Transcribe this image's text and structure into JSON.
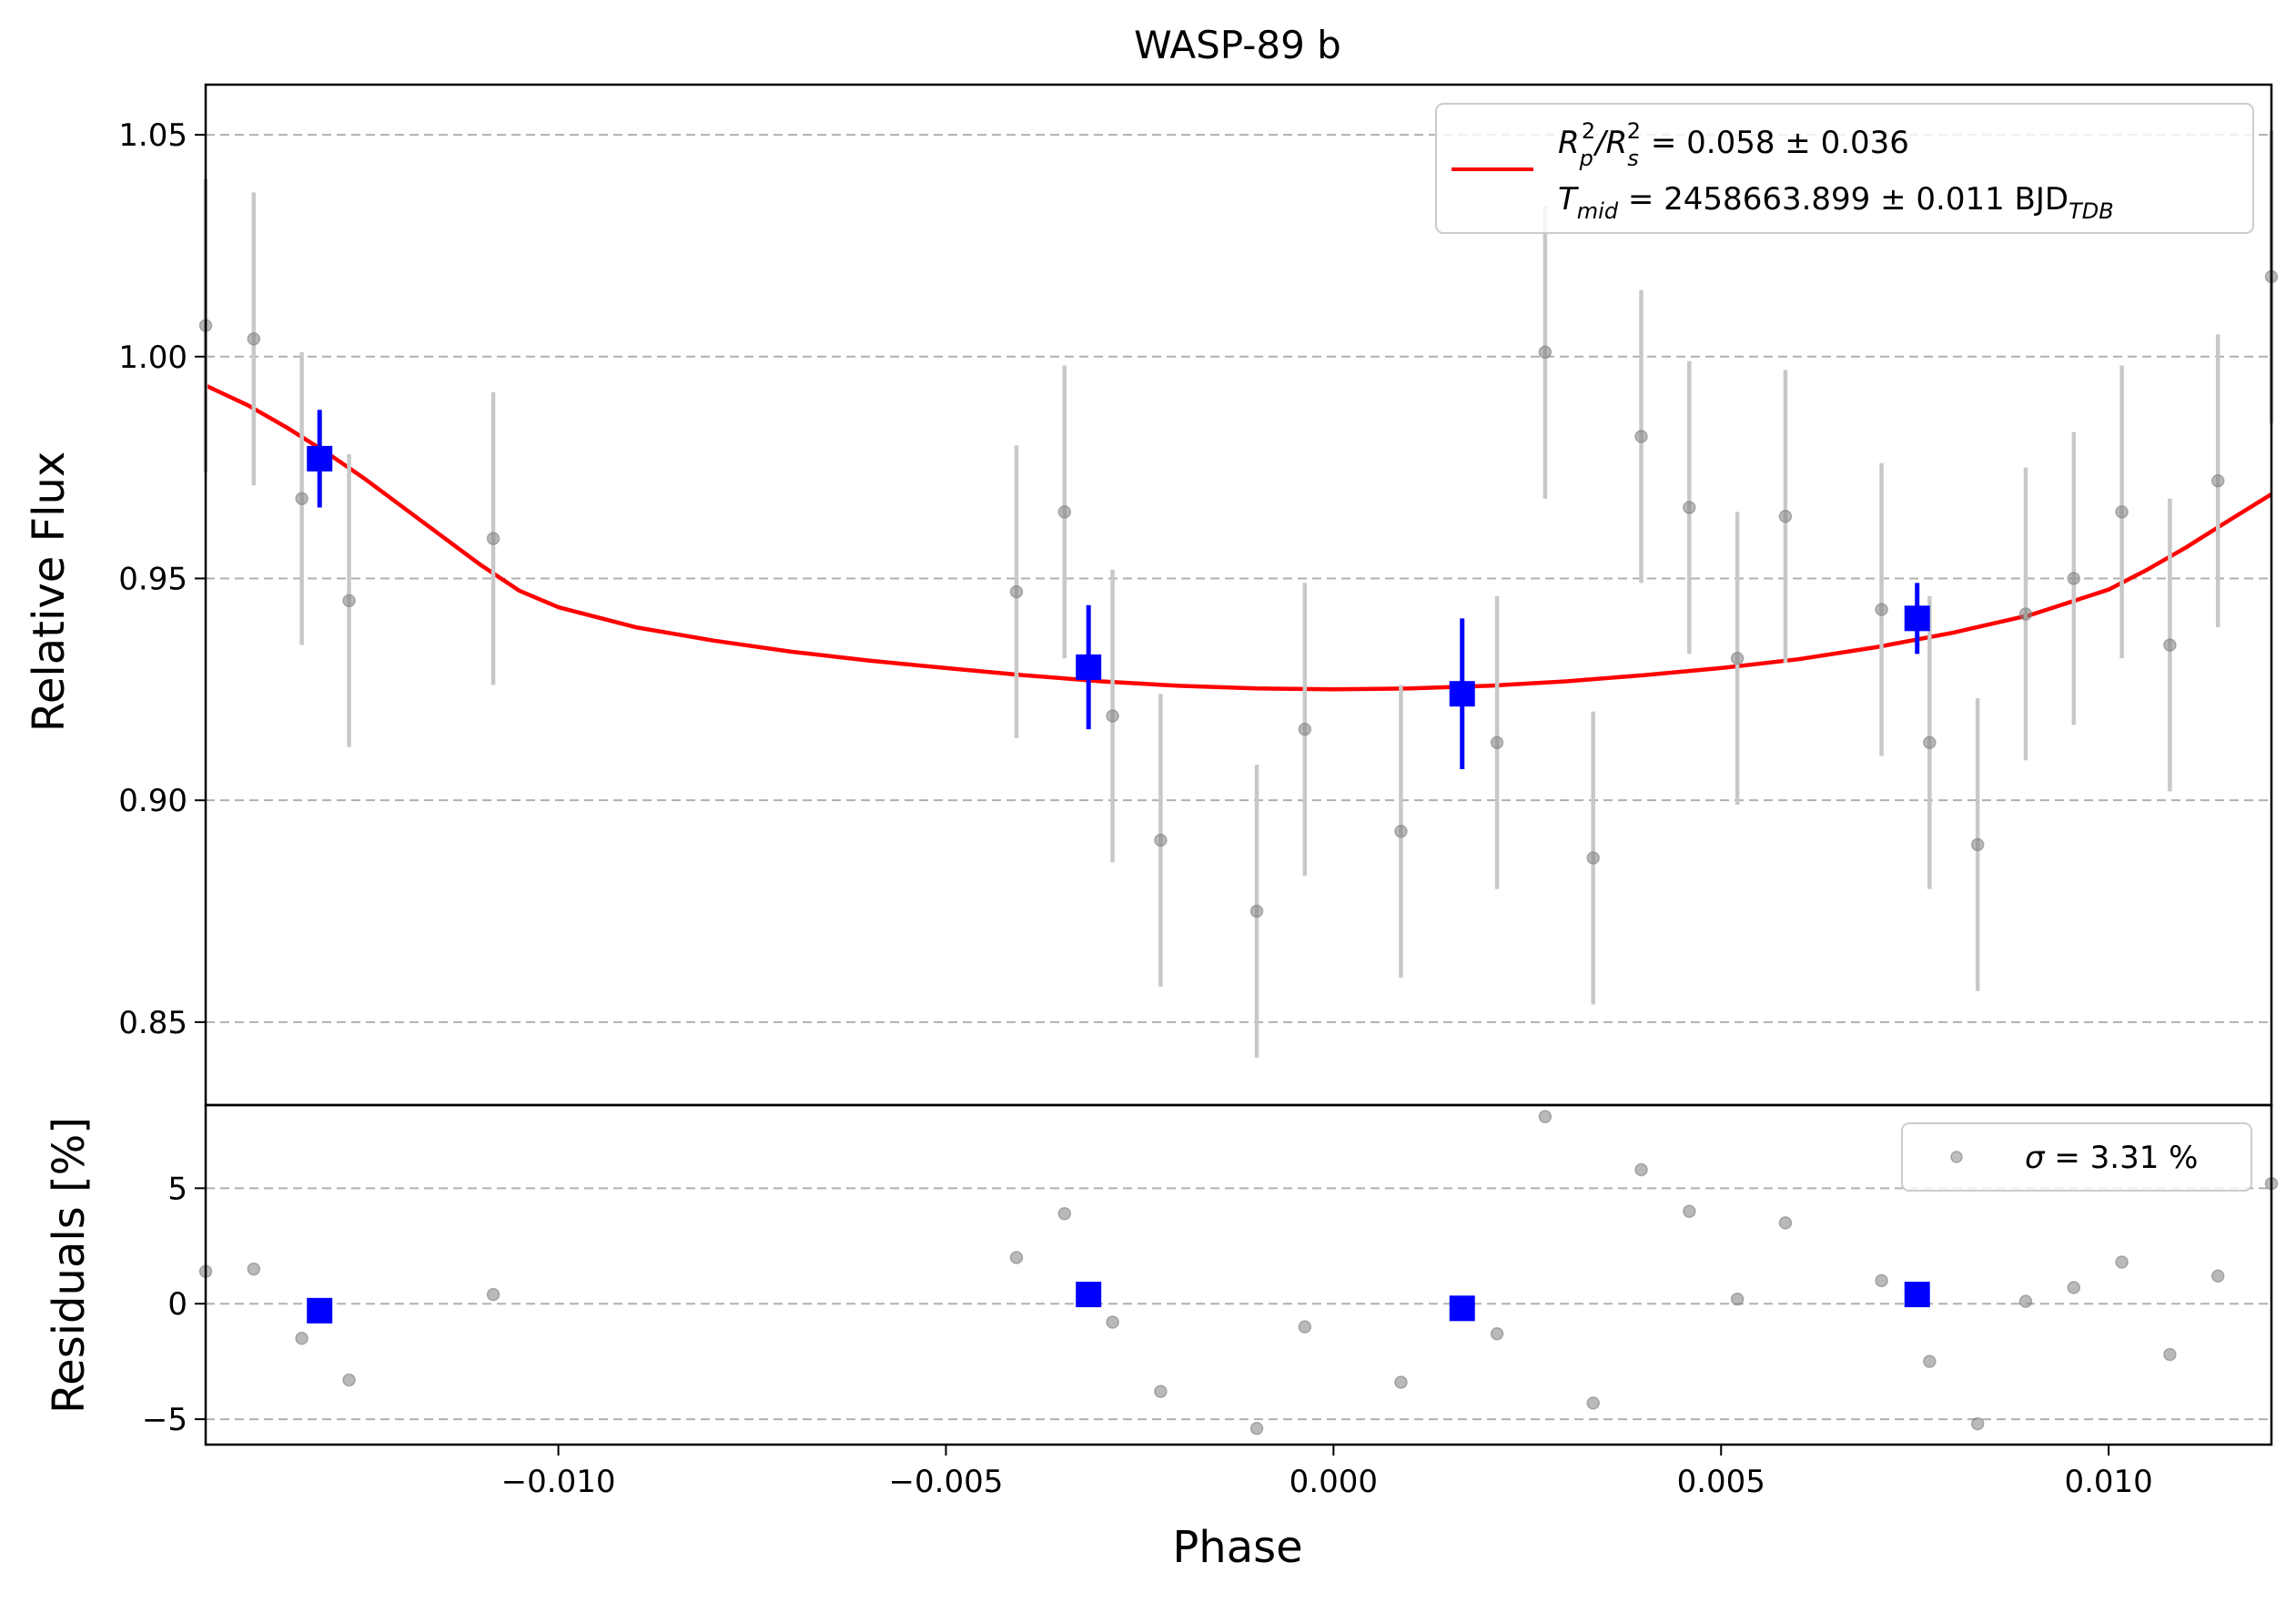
{
  "chart_data": [
    {
      "type": "scatter",
      "title": "WASP-89 b",
      "xlabel": "Phase",
      "ylabel": "Relative Flux",
      "xlim": [
        -0.01455,
        0.0121
      ],
      "ylim": [
        0.8313,
        1.0613
      ],
      "x_ticks": [
        -0.01,
        -0.005,
        0.0,
        0.005,
        0.01
      ],
      "x_tick_labels": [
        "−0.010",
        "−0.005",
        "0.000",
        "0.005",
        "0.010"
      ],
      "y_ticks": [
        0.85,
        0.9,
        0.95,
        1.0,
        1.05
      ],
      "y_tick_labels": [
        "0.85",
        "0.90",
        "0.95",
        "1.00",
        "1.05"
      ],
      "grid": "horizontal dashed",
      "legend": {
        "placement": "upper right",
        "line1": {
          "lhs_main": "R",
          "lhs_sub1": "p",
          "lhs_sup1": "2",
          "lhs_sep": "/R",
          "lhs_sub2": "s",
          "lhs_sup2": "2",
          "rhs": " = 0.058 ± 0.036"
        },
        "line2": {
          "lhs_main": "T",
          "lhs_sub": "mid",
          "rhs": " = 2458663.899 ± 0.011 BJD",
          "rhs_sub": "TDB"
        }
      },
      "colors": {
        "data": "#808080",
        "errorbar": "#c8c8c8",
        "binned": "#0000ff",
        "model": "#ff0000",
        "grid": "#b0b0b0"
      },
      "series": [
        {
          "kind": "data",
          "points": [
            {
              "x": -0.01455,
              "y": 1.007,
              "err": 0.033
            },
            {
              "x": -0.01393,
              "y": 1.004,
              "err": 0.033
            },
            {
              "x": -0.01331,
              "y": 0.968,
              "err": 0.033
            },
            {
              "x": -0.0127,
              "y": 0.945,
              "err": 0.033
            },
            {
              "x": -0.01084,
              "y": 0.959,
              "err": 0.033
            },
            {
              "x": -0.00409,
              "y": 0.947,
              "err": 0.033
            },
            {
              "x": -0.00347,
              "y": 0.965,
              "err": 0.033
            },
            {
              "x": -0.00285,
              "y": 0.919,
              "err": 0.033
            },
            {
              "x": -0.00223,
              "y": 0.891,
              "err": 0.033
            },
            {
              "x": -0.00099,
              "y": 0.875,
              "err": 0.033
            },
            {
              "x": -0.00037,
              "y": 0.916,
              "err": 0.033
            },
            {
              "x": 0.00087,
              "y": 0.893,
              "err": 0.033
            },
            {
              "x": 0.00211,
              "y": 0.913,
              "err": 0.033
            },
            {
              "x": 0.00273,
              "y": 1.001,
              "err": 0.033
            },
            {
              "x": 0.00335,
              "y": 0.887,
              "err": 0.033
            },
            {
              "x": 0.00397,
              "y": 0.982,
              "err": 0.033
            },
            {
              "x": 0.00459,
              "y": 0.966,
              "err": 0.033
            },
            {
              "x": 0.00521,
              "y": 0.932,
              "err": 0.033
            },
            {
              "x": 0.00583,
              "y": 0.964,
              "err": 0.033
            },
            {
              "x": 0.00707,
              "y": 0.943,
              "err": 0.033
            },
            {
              "x": 0.00769,
              "y": 0.913,
              "err": 0.033
            },
            {
              "x": 0.00831,
              "y": 0.89,
              "err": 0.033
            },
            {
              "x": 0.00893,
              "y": 0.942,
              "err": 0.033
            },
            {
              "x": 0.00955,
              "y": 0.95,
              "err": 0.033
            },
            {
              "x": 0.01017,
              "y": 0.965,
              "err": 0.033
            },
            {
              "x": 0.01079,
              "y": 0.935,
              "err": 0.033
            },
            {
              "x": 0.01141,
              "y": 0.972,
              "err": 0.033
            },
            {
              "x": 0.0121,
              "y": 1.018,
              "err": 0.033
            }
          ]
        },
        {
          "kind": "binned",
          "points": [
            {
              "x": -0.01308,
              "y": 0.977,
              "err": 0.011
            },
            {
              "x": -0.00316,
              "y": 0.93,
              "err": 0.014
            },
            {
              "x": 0.00166,
              "y": 0.924,
              "err": 0.017
            },
            {
              "x": 0.00753,
              "y": 0.941,
              "err": 0.008
            }
          ]
        },
        {
          "kind": "model",
          "x": [
            -0.01455,
            -0.014,
            -0.0135,
            -0.013,
            -0.0125,
            -0.012,
            -0.0115,
            -0.011,
            -0.0105,
            -0.01,
            -0.009,
            -0.008,
            -0.007,
            -0.006,
            -0.005,
            -0.004,
            -0.003,
            -0.002,
            -0.001,
            0.0,
            0.001,
            0.002,
            0.003,
            0.004,
            0.005,
            0.006,
            0.007,
            0.008,
            0.009,
            0.01,
            0.0105,
            0.011,
            0.0115,
            0.0121
          ],
          "y": [
            0.9935,
            0.989,
            0.984,
            0.9785,
            0.9725,
            0.966,
            0.9595,
            0.953,
            0.9472,
            0.9435,
            0.939,
            0.936,
            0.9335,
            0.9315,
            0.9298,
            0.9282,
            0.9268,
            0.9258,
            0.9252,
            0.925,
            0.9252,
            0.9258,
            0.9268,
            0.9282,
            0.9298,
            0.9318,
            0.9345,
            0.9378,
            0.9418,
            0.9475,
            0.952,
            0.957,
            0.9625,
            0.969
          ]
        }
      ]
    },
    {
      "type": "scatter",
      "xlabel": "Phase",
      "ylabel": "Residuals [%]",
      "xlim": [
        -0.01455,
        0.0121
      ],
      "ylim": [
        -6.1,
        8.6
      ],
      "y_ticks": [
        -5,
        0,
        5
      ],
      "y_tick_labels": [
        "−5",
        "0",
        "5"
      ],
      "grid": "horizontal dashed",
      "legend": {
        "placement": "upper right",
        "sym": "σ",
        "rhs": " = 3.31 %"
      },
      "series": [
        {
          "kind": "data",
          "points": [
            {
              "x": -0.01455,
              "y": 1.4
            },
            {
              "x": -0.01393,
              "y": 1.5
            },
            {
              "x": -0.01331,
              "y": -1.5
            },
            {
              "x": -0.0127,
              "y": -3.3
            },
            {
              "x": -0.01084,
              "y": 0.4
            },
            {
              "x": -0.00409,
              "y": 2.0
            },
            {
              "x": -0.00347,
              "y": 3.9
            },
            {
              "x": -0.00285,
              "y": -0.8
            },
            {
              "x": -0.00223,
              "y": -3.8
            },
            {
              "x": -0.00099,
              "y": -5.4
            },
            {
              "x": -0.00037,
              "y": -1.0
            },
            {
              "x": 0.00087,
              "y": -3.4
            },
            {
              "x": 0.00211,
              "y": -1.3
            },
            {
              "x": 0.00273,
              "y": 8.1
            },
            {
              "x": 0.00335,
              "y": -4.3
            },
            {
              "x": 0.00397,
              "y": 5.8
            },
            {
              "x": 0.00459,
              "y": 4.0
            },
            {
              "x": 0.00521,
              "y": 0.2
            },
            {
              "x": 0.00583,
              "y": 3.5
            },
            {
              "x": 0.00707,
              "y": 1.0
            },
            {
              "x": 0.00769,
              "y": -2.5
            },
            {
              "x": 0.00831,
              "y": -5.2
            },
            {
              "x": 0.00893,
              "y": 0.1
            },
            {
              "x": 0.00955,
              "y": 0.7
            },
            {
              "x": 0.01017,
              "y": 1.8
            },
            {
              "x": 0.01079,
              "y": -2.2
            },
            {
              "x": 0.01141,
              "y": 1.2
            },
            {
              "x": 0.0121,
              "y": 5.2
            }
          ]
        },
        {
          "kind": "binned",
          "points": [
            {
              "x": -0.01308,
              "y": -0.3
            },
            {
              "x": -0.00316,
              "y": 0.4
            },
            {
              "x": 0.00166,
              "y": -0.2
            },
            {
              "x": 0.00753,
              "y": 0.4
            }
          ]
        }
      ]
    }
  ]
}
